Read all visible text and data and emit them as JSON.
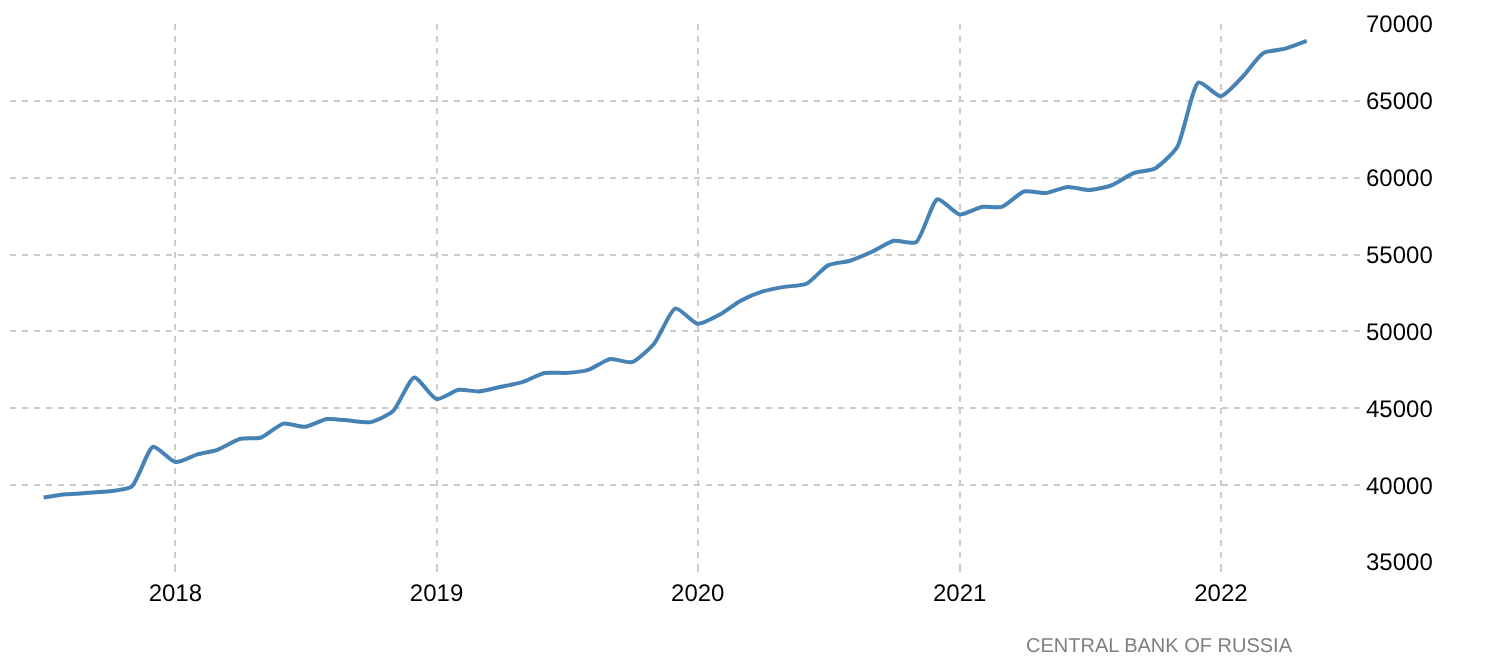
{
  "chart_data": {
    "type": "line",
    "x": [
      "2017-07",
      "2017-08",
      "2017-09",
      "2017-10",
      "2017-11",
      "2017-12",
      "2018-01",
      "2018-02",
      "2018-03",
      "2018-04",
      "2018-05",
      "2018-06",
      "2018-07",
      "2018-08",
      "2018-09",
      "2018-10",
      "2018-11",
      "2018-12",
      "2019-01",
      "2019-02",
      "2019-03",
      "2019-04",
      "2019-05",
      "2019-06",
      "2019-07",
      "2019-08",
      "2019-09",
      "2019-10",
      "2019-11",
      "2019-12",
      "2020-01",
      "2020-02",
      "2020-03",
      "2020-04",
      "2020-05",
      "2020-06",
      "2020-07",
      "2020-08",
      "2020-09",
      "2020-10",
      "2020-11",
      "2020-12",
      "2021-01",
      "2021-02",
      "2021-03",
      "2021-04",
      "2021-05",
      "2021-06",
      "2021-07",
      "2021-08",
      "2021-09",
      "2021-10",
      "2021-11",
      "2021-12",
      "2022-01",
      "2022-02",
      "2022-03",
      "2022-04",
      "2022-05"
    ],
    "series": [
      {
        "color": "#4682b4",
        "values": [
          39200,
          39400,
          39500,
          39600,
          39900,
          42500,
          41500,
          42000,
          42300,
          43000,
          43100,
          44000,
          43800,
          44300,
          44200,
          44100,
          44800,
          47000,
          45600,
          46200,
          46100,
          46400,
          46700,
          47300,
          47300,
          47500,
          48200,
          48000,
          49200,
          51500,
          50500,
          51100,
          52000,
          52600,
          52900,
          53100,
          54300,
          54600,
          55200,
          55900,
          55800,
          58600,
          57600,
          58100,
          58100,
          59100,
          59000,
          59400,
          59200,
          59500,
          60300,
          60600,
          62000,
          66200,
          65300,
          66600,
          68100,
          68400,
          68900
        ]
      }
    ],
    "xlim": [
      "2017-05-15",
      "2022-07-20"
    ],
    "xticks": [
      {
        "value": "2018-01-01",
        "label": "2018"
      },
      {
        "value": "2019-01-01",
        "label": "2019"
      },
      {
        "value": "2020-01-01",
        "label": "2020"
      },
      {
        "value": "2021-01-01",
        "label": "2021"
      },
      {
        "value": "2022-01-01",
        "label": "2022"
      }
    ],
    "ylim": [
      35000,
      70000
    ],
    "yticks": [
      35000,
      40000,
      45000,
      50000,
      55000,
      60000,
      65000,
      70000
    ],
    "grid": true,
    "line_style": "solid",
    "annotations": [
      "CENTRAL BANK OF RUSSIA"
    ]
  }
}
